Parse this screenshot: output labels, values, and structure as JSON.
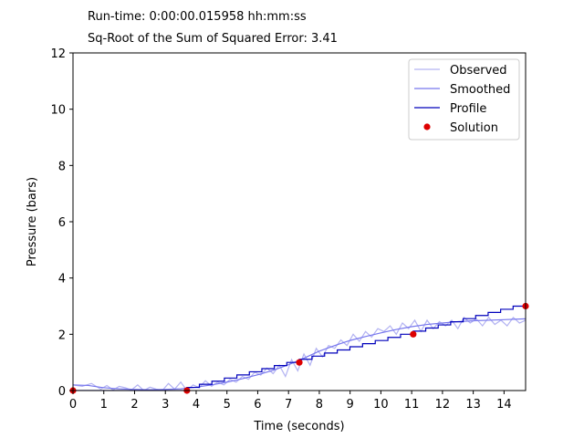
{
  "header": {
    "runtime_label": "Run-time:",
    "runtime_value": "0:00:00.015958 hh:mm:ss",
    "error_label": "Sq-Root of the Sum of Squared Error:",
    "error_value": "3.41"
  },
  "chart_data": {
    "type": "line",
    "xlabel": "Time (seconds)",
    "ylabel": "Pressure (bars)",
    "xlim": [
      0,
      14.7
    ],
    "ylim": [
      0,
      12
    ],
    "xticks": [
      0,
      1,
      2,
      3,
      4,
      5,
      6,
      7,
      8,
      9,
      10,
      11,
      12,
      13,
      14
    ],
    "yticks": [
      0,
      2,
      4,
      6,
      8,
      10,
      12
    ],
    "grid": false,
    "legend_position": "top-right",
    "series": [
      {
        "name": "Observed",
        "kind": "line",
        "color": "#b3b3f2",
        "x": [
          0,
          0.3,
          0.6,
          0.9,
          1.1,
          1.3,
          1.5,
          1.7,
          1.9,
          2.1,
          2.3,
          2.5,
          2.7,
          2.9,
          3.1,
          3.3,
          3.5,
          3.7,
          3.9,
          4.1,
          4.3,
          4.5,
          4.7,
          4.9,
          5.1,
          5.3,
          5.5,
          5.7,
          5.9,
          6.1,
          6.3,
          6.5,
          6.7,
          6.9,
          7.1,
          7.3,
          7.5,
          7.7,
          7.9,
          8.1,
          8.3,
          8.5,
          8.7,
          8.9,
          9.1,
          9.3,
          9.5,
          9.7,
          9.9,
          10.1,
          10.3,
          10.5,
          10.7,
          10.9,
          11.1,
          11.3,
          11.5,
          11.7,
          11.9,
          12.1,
          12.3,
          12.5,
          12.7,
          12.9,
          13.1,
          13.3,
          13.5,
          13.7,
          13.9,
          14.1,
          14.3,
          14.5,
          14.7
        ],
        "y": [
          0.2,
          0.15,
          0.25,
          0.05,
          0.18,
          0.02,
          0.15,
          0.1,
          0.02,
          0.2,
          0.0,
          0.12,
          0.05,
          0.0,
          0.25,
          0.05,
          0.3,
          0.0,
          0.2,
          0.1,
          0.35,
          0.15,
          0.3,
          0.2,
          0.4,
          0.3,
          0.5,
          0.4,
          0.65,
          0.55,
          0.8,
          0.6,
          0.9,
          0.5,
          1.1,
          0.7,
          1.3,
          0.9,
          1.5,
          1.2,
          1.6,
          1.5,
          1.8,
          1.6,
          2.0,
          1.75,
          2.1,
          1.9,
          2.2,
          2.1,
          2.3,
          2.0,
          2.4,
          2.2,
          2.5,
          2.1,
          2.5,
          2.2,
          2.45,
          2.3,
          2.5,
          2.2,
          2.6,
          2.4,
          2.55,
          2.3,
          2.6,
          2.35,
          2.5,
          2.3,
          2.6,
          2.4,
          2.5
        ]
      },
      {
        "name": "Smoothed",
        "kind": "line",
        "color": "#7777ee",
        "x": [
          0,
          0.5,
          1,
          1.5,
          2,
          2.5,
          3,
          3.5,
          4,
          4.5,
          5,
          5.5,
          6,
          6.5,
          7,
          7.5,
          8,
          8.5,
          9,
          9.5,
          10,
          10.5,
          11,
          11.5,
          12,
          12.5,
          13,
          13.5,
          14,
          14.7
        ],
        "y": [
          0.2,
          0.18,
          0.1,
          0.06,
          0.04,
          0.03,
          0.04,
          0.06,
          0.12,
          0.2,
          0.3,
          0.42,
          0.56,
          0.72,
          0.92,
          1.15,
          1.4,
          1.6,
          1.78,
          1.92,
          2.05,
          2.17,
          2.27,
          2.35,
          2.4,
          2.45,
          2.48,
          2.5,
          2.52,
          2.55
        ]
      },
      {
        "name": "Profile",
        "kind": "step",
        "color": "#0000bb",
        "x": [
          0,
          3.7,
          7.35,
          11.05,
          14.7
        ],
        "y": [
          0,
          0,
          1.0,
          2.0,
          3.0
        ]
      },
      {
        "name": "Solution",
        "kind": "scatter",
        "color": "#dd0000",
        "x": [
          0,
          3.7,
          7.35,
          11.05,
          14.7
        ],
        "y": [
          0,
          0,
          1.0,
          2.0,
          3.0
        ]
      }
    ]
  }
}
